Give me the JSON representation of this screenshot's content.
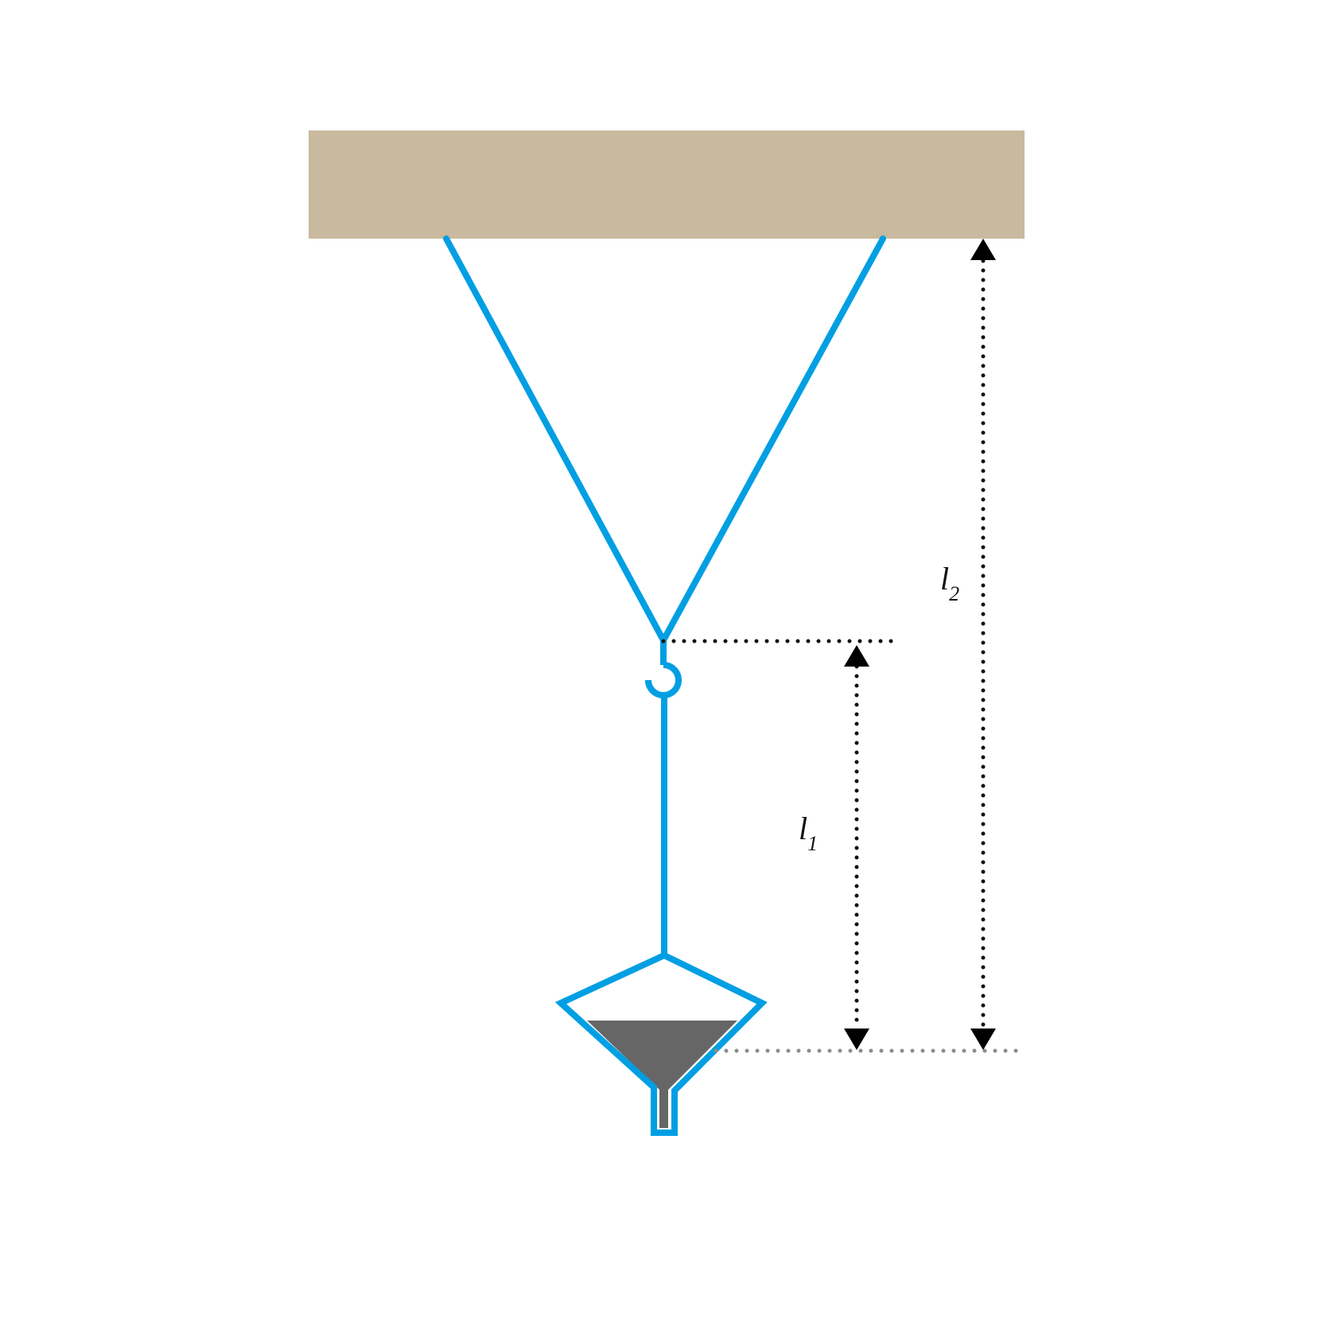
{
  "labels": {
    "l1": {
      "main": "l",
      "sub": "1"
    },
    "l2": {
      "main": "l",
      "sub": "2"
    }
  },
  "colors": {
    "ceiling": "#c9b99e",
    "string": "#009fe3",
    "sand": "#666666",
    "dimension_line": "#111111",
    "reference_line": "#8c8c8c",
    "background": "#ffffff"
  },
  "icons": {
    "hook": "hook-icon",
    "funnel": "funnel-icon",
    "arrow_up": "arrow-up-icon",
    "arrow_down": "arrow-down-icon"
  }
}
